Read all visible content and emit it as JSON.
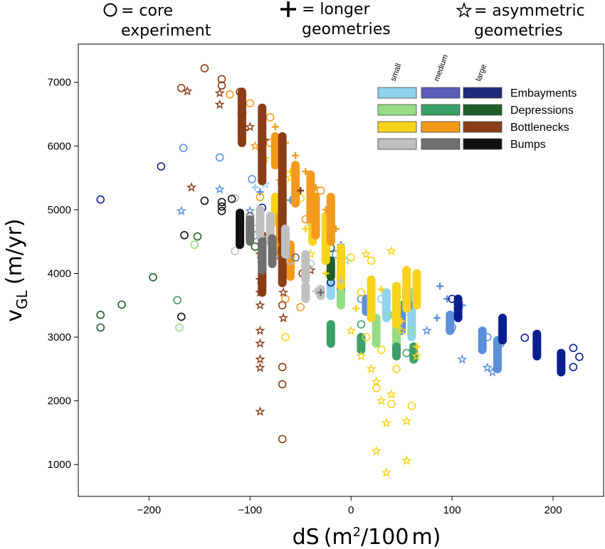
{
  "chart_data": {
    "type": "scatter",
    "xlabel": "dS (m²/100 m)",
    "ylabel": "v_GL (m/yr)",
    "xlim": [
      -270,
      250
    ],
    "ylim": [
      500,
      7600
    ],
    "xticks": [
      -200,
      -100,
      0,
      100,
      200
    ],
    "yticks": [
      1000,
      2000,
      3000,
      4000,
      5000,
      6000,
      7000
    ],
    "grid": false,
    "header": {
      "core": "= core\nexperiment",
      "longer": "= longer\ngeometries",
      "asym": "= asymmetric\ngeometries"
    },
    "legend": {
      "placement": "top-right",
      "size_labels": [
        "small",
        "medium",
        "large"
      ],
      "rows": [
        {
          "name": "Embayments",
          "colors": [
            "#8fd3ec",
            "#5a5cb8",
            "#1f2a78"
          ]
        },
        {
          "name": "Depressions",
          "colors": [
            "#97dc85",
            "#3ba068",
            "#1f5e2a"
          ]
        },
        {
          "name": "Bottlenecks",
          "colors": [
            "#f7d31a",
            "#f29a1c",
            "#8a3d16"
          ]
        },
        {
          "name": "Bumps",
          "colors": [
            "#c0c0c0",
            "#707070",
            "#111111"
          ]
        }
      ]
    },
    "series": [
      {
        "group": "Embayments",
        "size": "small",
        "color": "#8fd3ec",
        "circle": [
          [
            -70,
            5150
          ],
          [
            -40,
            4800
          ],
          [
            -10,
            4000
          ],
          [
            30,
            3600
          ],
          [
            55,
            3400
          ]
        ],
        "plus": [
          [
            -95,
            5350
          ],
          [
            -20,
            4500
          ]
        ],
        "star": [
          [
            -85,
            5400
          ],
          [
            -5,
            4200
          ]
        ],
        "bars": [
          [
            -20,
            3850,
            3650
          ],
          [
            35,
            3700,
            3300
          ],
          [
            60,
            3700,
            3000
          ]
        ]
      },
      {
        "group": "Embayments",
        "size": "medium",
        "color": "#5b8fdc",
        "circle": [
          [
            -166,
            5970
          ],
          [
            -130,
            5820
          ],
          [
            -98,
            5480
          ],
          [
            -15,
            4300
          ],
          [
            10,
            3600
          ],
          [
            100,
            3150
          ],
          [
            135,
            3000
          ],
          [
            148,
            2900
          ]
        ],
        "plus": [
          [
            -90,
            5280
          ],
          [
            -60,
            5150
          ],
          [
            -10,
            4450
          ],
          [
            60,
            3500
          ],
          [
            85,
            3300
          ],
          [
            88,
            3800
          ],
          [
            95,
            3600
          ],
          [
            110,
            3500
          ]
        ],
        "star": [
          [
            -168,
            4980
          ],
          [
            -130,
            5320
          ],
          [
            -100,
            4980
          ],
          [
            75,
            3100
          ],
          [
            110,
            2650
          ],
          [
            135,
            2520
          ],
          [
            140,
            2450
          ]
        ],
        "bars": [
          [
            -10,
            3900,
            3700
          ],
          [
            15,
            3600,
            3400
          ],
          [
            50,
            3500,
            3100
          ],
          [
            98,
            3350,
            3100
          ],
          [
            130,
            3100,
            2800
          ],
          [
            145,
            2950,
            2500
          ]
        ]
      },
      {
        "group": "Embayments",
        "size": "large",
        "color": "#0a1f8f",
        "circle": [
          [
            -248,
            5160
          ],
          [
            -188,
            5680
          ],
          [
            -88,
            5030
          ],
          [
            -20,
            4880
          ],
          [
            -20,
            3860
          ],
          [
            55,
            3700
          ],
          [
            100,
            3600
          ],
          [
            172,
            2990
          ],
          [
            220,
            2830
          ],
          [
            226,
            2690
          ],
          [
            220,
            2530
          ]
        ],
        "plus": [],
        "star": [],
        "bars": [
          [
            55,
            3750,
            3550
          ],
          [
            106,
            3600,
            3300
          ],
          [
            150,
            3300,
            2950
          ],
          [
            184,
            3050,
            2700
          ],
          [
            208,
            2750,
            2450
          ]
        ]
      },
      {
        "group": "Depressions",
        "size": "small",
        "color": "#97dc85",
        "circle": [
          [
            -155,
            4450
          ],
          [
            -170,
            3150
          ],
          [
            20,
            3600
          ],
          [
            60,
            3100
          ]
        ],
        "plus": [
          [
            40,
            3350
          ]
        ],
        "star": [],
        "bars": [
          [
            -10,
            3700,
            3500
          ],
          [
            25,
            3300,
            2900
          ],
          [
            45,
            3200,
            2800
          ]
        ]
      },
      {
        "group": "Depressions",
        "size": "medium",
        "color": "#3ba068",
        "circle": [
          [
            -172,
            3580
          ],
          [
            -95,
            4600
          ],
          [
            10,
            3200
          ],
          [
            55,
            2750
          ]
        ],
        "plus": [],
        "star": [],
        "bars": [
          [
            -20,
            3200,
            2900
          ],
          [
            10,
            3000,
            2800
          ],
          [
            45,
            2850,
            2700
          ],
          [
            62,
            2850,
            2650
          ]
        ]
      },
      {
        "group": "Depressions",
        "size": "large",
        "color": "#1f5e2a",
        "circle": [
          [
            -248,
            3350
          ],
          [
            -248,
            3150
          ],
          [
            -227,
            3510
          ],
          [
            -196,
            3940
          ],
          [
            -152,
            4580
          ],
          [
            -95,
            4420
          ],
          [
            -20,
            4400
          ]
        ],
        "plus": [],
        "star": [],
        "bars": [
          [
            -20,
            4200,
            3950
          ]
        ]
      },
      {
        "group": "Bottlenecks",
        "size": "small",
        "color": "#f7d31a",
        "circle": [
          [
            -50,
            5180
          ],
          [
            -20,
            4500
          ],
          [
            0,
            4250
          ],
          [
            20,
            4200
          ],
          [
            10,
            3700
          ],
          [
            15,
            3000
          ],
          [
            30,
            2800
          ],
          [
            45,
            2500
          ],
          [
            25,
            2200
          ],
          [
            40,
            1950
          ],
          [
            60,
            1920
          ],
          [
            -65,
            3000
          ]
        ],
        "plus": [
          [
            -60,
            5600
          ],
          [
            -45,
            4700
          ],
          [
            -25,
            4000
          ],
          [
            5,
            3450
          ],
          [
            30,
            3750
          ],
          [
            50,
            3250
          ],
          [
            65,
            2850
          ]
        ],
        "star": [
          [
            -85,
            5800
          ],
          [
            -60,
            5500
          ],
          [
            -40,
            4300
          ],
          [
            0,
            3100
          ],
          [
            10,
            2700
          ],
          [
            20,
            2500
          ],
          [
            25,
            2300
          ],
          [
            30,
            2000
          ],
          [
            35,
            1650
          ],
          [
            40,
            2100
          ],
          [
            55,
            1680
          ],
          [
            55,
            1060
          ],
          [
            25,
            1210
          ],
          [
            35,
            870
          ],
          [
            50,
            3100
          ],
          [
            65,
            2700
          ],
          [
            15,
            4300
          ],
          [
            40,
            4350
          ]
        ],
        "bars": [
          [
            -75,
            5200,
            4800
          ],
          [
            -38,
            5200,
            4500
          ],
          [
            -25,
            4900,
            4200
          ],
          [
            -10,
            4400,
            3800
          ],
          [
            20,
            3900,
            3300
          ],
          [
            45,
            3800,
            3200
          ],
          [
            55,
            4050,
            3450
          ],
          [
            65,
            4000,
            3500
          ]
        ]
      },
      {
        "group": "Bottlenecks",
        "size": "medium",
        "color": "#f29a1c",
        "circle": [
          [
            -100,
            6670
          ],
          [
            -120,
            6810
          ],
          [
            -80,
            6450
          ],
          [
            -80,
            6050
          ],
          [
            -55,
            5700
          ],
          [
            -45,
            4850
          ],
          [
            -60,
            4400
          ],
          [
            -65,
            3600
          ],
          [
            -50,
            3470
          ],
          [
            -90,
            5200
          ],
          [
            -30,
            5300
          ]
        ],
        "plus": [
          [
            -75,
            6300
          ],
          [
            -65,
            6050
          ],
          [
            -55,
            5850
          ],
          [
            -45,
            5600
          ],
          [
            -35,
            5350
          ],
          [
            -25,
            5000
          ],
          [
            -15,
            4700
          ]
        ],
        "star": [
          [
            -95,
            6000
          ],
          [
            -70,
            5450
          ]
        ],
        "bars": [
          [
            -75,
            6150,
            5700
          ],
          [
            -55,
            5700,
            5100
          ],
          [
            -40,
            5550,
            4850
          ],
          [
            -35,
            5200,
            4600
          ],
          [
            -20,
            5200,
            4500
          ],
          [
            -70,
            4900,
            4300
          ],
          [
            -60,
            4450,
            3950
          ]
        ]
      },
      {
        "group": "Bottlenecks",
        "size": "large",
        "color": "#8a3d16",
        "circle": [
          [
            -168,
            6910
          ],
          [
            -145,
            7220
          ],
          [
            -128,
            7050
          ],
          [
            -128,
            6950
          ],
          [
            -110,
            6850
          ],
          [
            -88,
            6580
          ],
          [
            -68,
            5900
          ],
          [
            -68,
            4600
          ],
          [
            -68,
            3500
          ],
          [
            -68,
            2530
          ],
          [
            -68,
            2260
          ],
          [
            -68,
            1400
          ],
          [
            -88,
            4200
          ],
          [
            -48,
            4000
          ]
        ],
        "plus": [
          [
            -105,
            6250
          ],
          [
            -85,
            6100
          ],
          [
            -68,
            5800
          ],
          [
            -50,
            5300
          ]
        ],
        "star": [
          [
            -162,
            6860
          ],
          [
            -130,
            6830
          ],
          [
            -130,
            6650
          ],
          [
            -108,
            6500
          ],
          [
            -100,
            6300
          ],
          [
            -158,
            5350
          ],
          [
            -90,
            4300
          ],
          [
            -90,
            3900
          ],
          [
            -90,
            3700
          ],
          [
            -90,
            3500
          ],
          [
            -90,
            3100
          ],
          [
            -90,
            2900
          ],
          [
            -90,
            2650
          ],
          [
            -90,
            2520
          ],
          [
            -90,
            1830
          ],
          [
            -67,
            3700
          ],
          [
            -67,
            3300
          ],
          [
            -40,
            4050
          ]
        ],
        "bars": [
          [
            -108,
            6850,
            6050
          ],
          [
            -88,
            6600,
            5450
          ],
          [
            -68,
            6150,
            4900
          ],
          [
            -68,
            5300,
            4500
          ],
          [
            -88,
            4600,
            3700
          ],
          [
            -68,
            4400,
            3850
          ]
        ]
      },
      {
        "group": "Bumps",
        "size": "small",
        "color": "#c0c0c0",
        "circle": [
          [
            -115,
            5180
          ],
          [
            -115,
            4350
          ],
          [
            -95,
            4700
          ],
          [
            -85,
            4520
          ],
          [
            -60,
            4200
          ],
          [
            -40,
            4150
          ]
        ],
        "plus": [
          [
            -35,
            3720
          ],
          [
            -10,
            3880
          ]
        ],
        "star": [],
        "bars": [
          [
            -90,
            5000,
            4600
          ],
          [
            -80,
            4900,
            4500
          ],
          [
            -65,
            4700,
            4300
          ],
          [
            -45,
            4300,
            3900
          ],
          [
            -45,
            3800,
            3600
          ],
          [
            -30,
            3750,
            3650
          ]
        ]
      },
      {
        "group": "Bumps",
        "size": "medium",
        "color": "#707070",
        "circle": [
          [
            -100,
            4900
          ],
          [
            -75,
            4280
          ],
          [
            -55,
            4250
          ]
        ],
        "plus": [
          [
            -30,
            3700
          ]
        ],
        "star": [],
        "bars": [
          [
            -100,
            4850,
            4500
          ],
          [
            -88,
            4500,
            4050
          ],
          [
            -78,
            4550,
            4150
          ]
        ]
      },
      {
        "group": "Bumps",
        "size": "large",
        "color": "#111111",
        "circle": [
          [
            -145,
            5140
          ],
          [
            -128,
            5120
          ],
          [
            -128,
            5050
          ],
          [
            -128,
            4980
          ],
          [
            -118,
            5170
          ],
          [
            -165,
            4600
          ],
          [
            -168,
            3320
          ],
          [
            -110,
            4720
          ]
        ],
        "plus": [],
        "star": [],
        "bars": [
          [
            -110,
            4950,
            4450
          ]
        ]
      }
    ]
  }
}
